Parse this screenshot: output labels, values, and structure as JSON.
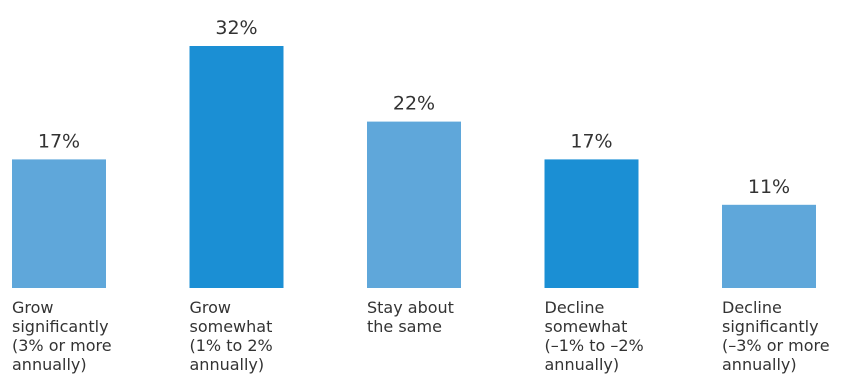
{
  "chart_data": {
    "type": "bar",
    "categories": [
      [
        "Grow",
        "significantly",
        "(3% or more",
        "annually)"
      ],
      [
        "Grow",
        "somewhat",
        "(1% to 2%",
        "annually)"
      ],
      [
        "Stay about",
        "the same"
      ],
      [
        "Decline",
        "somewhat",
        "(–1% to –2%",
        "annually)"
      ],
      [
        "Decline",
        "significantly",
        "(–3% or more",
        "annually)"
      ]
    ],
    "values": [
      17,
      32,
      22,
      17,
      11
    ],
    "value_labels": [
      "17%",
      "32%",
      "22%",
      "17%",
      "11%"
    ],
    "bar_colors": [
      "#5fa7da",
      "#1b8fd4",
      "#5fa7da",
      "#1b8fd4",
      "#5fa7da"
    ],
    "ylim": [
      0,
      32
    ],
    "grid": false,
    "legend": "none"
  }
}
